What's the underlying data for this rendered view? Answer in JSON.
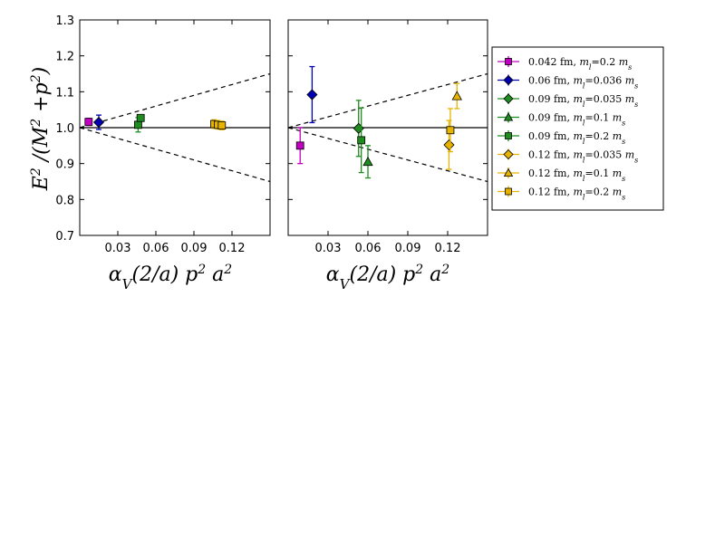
{
  "chart_data": {
    "type": "scatter",
    "ylabel": "E² /(M² +p²)",
    "xlabel": "αV(2/a) p² a²",
    "ylim": [
      0.7,
      1.3
    ],
    "xlim": [
      0.0,
      0.15
    ],
    "yticks": [
      "0.7",
      "0.8",
      "0.9",
      "1.0",
      "1.1",
      "1.2",
      "1.3"
    ],
    "xticks": [
      "0.03",
      "0.06",
      "0.09",
      "0.12"
    ],
    "reference_line": 1.0,
    "band_slope": 1.0,
    "series": [
      {
        "name": "0.042 fm, ml=0.2 ms",
        "color": "#c000c0",
        "marker": "square"
      },
      {
        "name": "0.06 fm, ml=0.036 ms",
        "color": "#0000b0",
        "marker": "diamond"
      },
      {
        "name": "0.09 fm, ml=0.035 ms",
        "color": "#1e8c1e",
        "marker": "diamond"
      },
      {
        "name": "0.09 fm, ml=0.1 ms",
        "color": "#1e8c1e",
        "marker": "triangle"
      },
      {
        "name": "0.09 fm, ml=0.2 ms",
        "color": "#1e8c1e",
        "marker": "square"
      },
      {
        "name": "0.12 fm, ml=0.035 ms",
        "color": "#e6b400",
        "marker": "diamond"
      },
      {
        "name": "0.12 fm, ml=0.1 ms",
        "color": "#e6b400",
        "marker": "triangle"
      },
      {
        "name": "0.12 fm, ml=0.2 ms",
        "color": "#e6b400",
        "marker": "square"
      }
    ],
    "panels": [
      {
        "name": "left",
        "points": [
          {
            "series": 0,
            "x": 0.007,
            "y": 1.016,
            "err": 0.01
          },
          {
            "series": 1,
            "x": 0.015,
            "y": 1.015,
            "err": 0.02
          },
          {
            "series": 4,
            "x": 0.046,
            "y": 1.008,
            "err": 0.02
          },
          {
            "series": 4,
            "x": 0.048,
            "y": 1.027,
            "err": 0.008
          },
          {
            "series": 7,
            "x": 0.106,
            "y": 1.01,
            "err": 0.012
          },
          {
            "series": 7,
            "x": 0.109,
            "y": 1.008,
            "err": 0.012
          },
          {
            "series": 7,
            "x": 0.112,
            "y": 1.006,
            "err": 0.012
          }
        ]
      },
      {
        "name": "right",
        "points": [
          {
            "series": 0,
            "x": 0.009,
            "y": 0.95,
            "err": 0.05
          },
          {
            "series": 1,
            "x": 0.018,
            "y": 1.092,
            "err": 0.078
          },
          {
            "series": 2,
            "x": 0.053,
            "y": 0.998,
            "err": 0.078
          },
          {
            "series": 4,
            "x": 0.055,
            "y": 0.965,
            "err": 0.09
          },
          {
            "series": 3,
            "x": 0.06,
            "y": 0.905,
            "err": 0.045
          },
          {
            "series": 5,
            "x": 0.121,
            "y": 0.952,
            "err": 0.068
          },
          {
            "series": 7,
            "x": 0.122,
            "y": 0.993,
            "err": 0.06
          },
          {
            "series": 6,
            "x": 0.127,
            "y": 1.088,
            "err": 0.035
          }
        ]
      }
    ]
  }
}
